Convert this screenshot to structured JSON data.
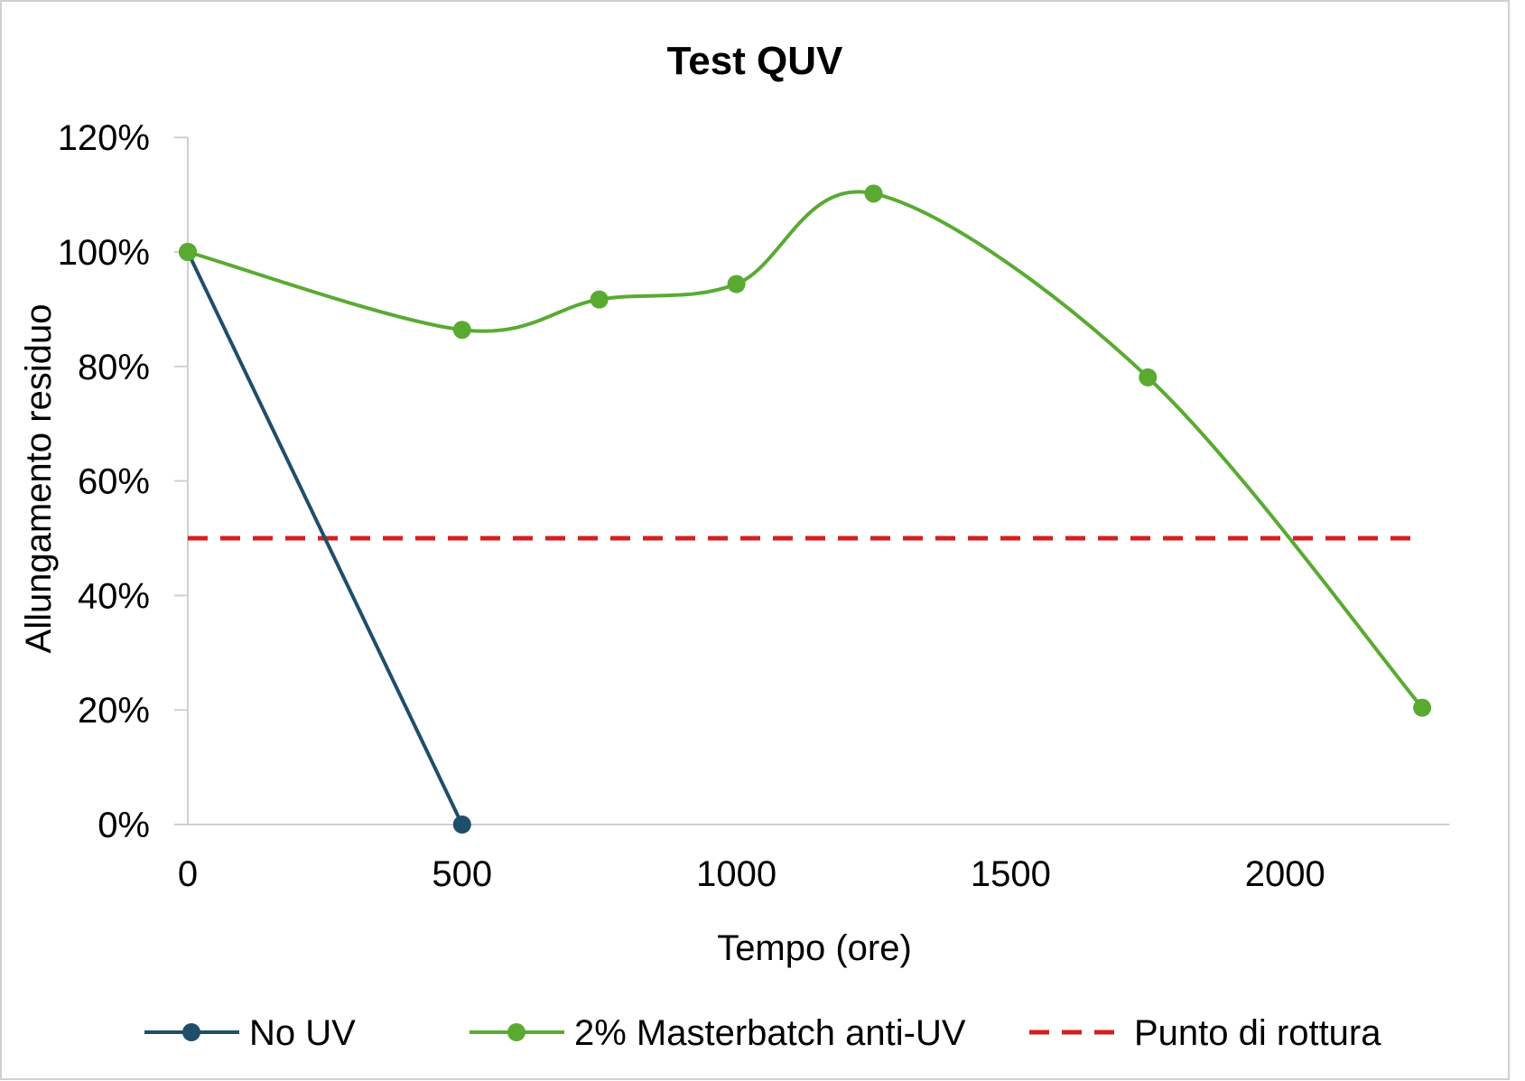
{
  "chart_data": {
    "type": "line",
    "title": "Test QUV",
    "xlabel": "Tempo (ore)",
    "ylabel": "Allungamento residuo",
    "xlim": [
      0,
      2300
    ],
    "ylim": [
      0,
      120
    ],
    "xticks": [
      0,
      500,
      1000,
      1500,
      2000
    ],
    "yticks": [
      0,
      20,
      40,
      60,
      80,
      100,
      120
    ],
    "ytick_labels": [
      "0%",
      "20%",
      "40%",
      "60%",
      "80%",
      "100%",
      "120%"
    ],
    "grid": false,
    "legend_position": "bottom",
    "series": [
      {
        "name": "No UV",
        "color": "#1f4e6b",
        "smooth": false,
        "marker": true,
        "x": [
          0,
          500
        ],
        "y": [
          100,
          0
        ]
      },
      {
        "name": "2% Masterbatch anti-UV",
        "color": "#5aaa32",
        "smooth": true,
        "marker": true,
        "x": [
          0,
          500,
          750,
          1000,
          1250,
          1750,
          2250
        ],
        "y": [
          100,
          86.4,
          91.7,
          94.4,
          110.2,
          78.1,
          20.4
        ]
      },
      {
        "name": "Punto di rottura",
        "color": "#d61f1f",
        "dashed": true,
        "marker": false,
        "x": [
          0,
          2250
        ],
        "y": [
          50,
          50
        ]
      }
    ]
  }
}
